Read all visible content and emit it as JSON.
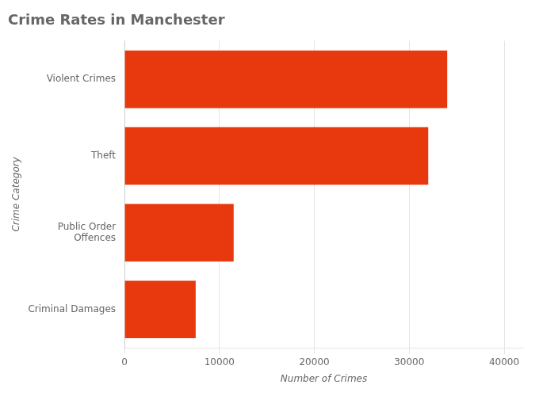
{
  "chart_data": {
    "type": "bar",
    "orientation": "horizontal",
    "title": "Crime Rates in Manchester",
    "categories": [
      "Criminal Damages",
      "Public Order\nOffences",
      "Theft",
      "Violent Crimes"
    ],
    "values": [
      7500,
      11500,
      32000,
      34000
    ],
    "color": "#E8380D",
    "xlabel": "Number of Crimes",
    "ylabel": "Crime Category",
    "xlim": [
      0,
      42000
    ],
    "xticks": [
      0,
      10000,
      20000,
      30000,
      40000
    ],
    "grid": true
  }
}
